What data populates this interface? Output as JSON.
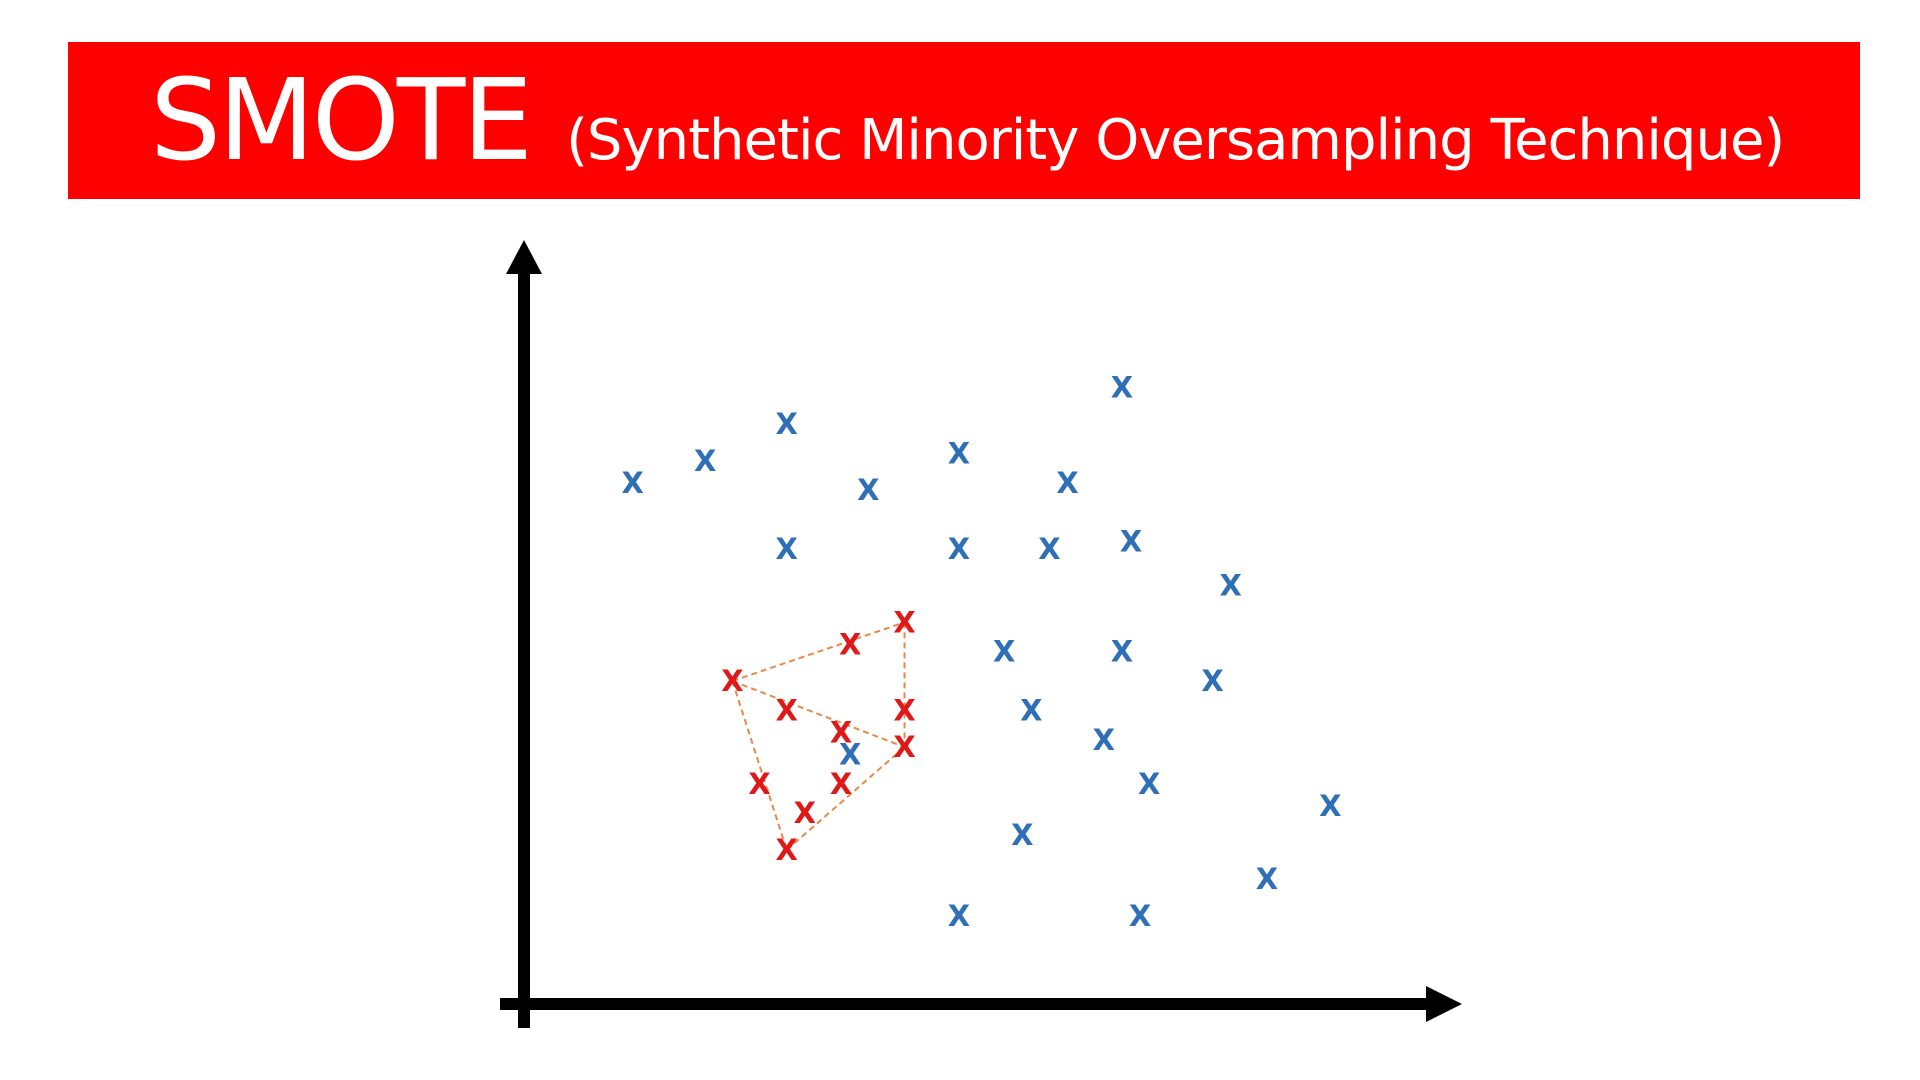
{
  "colors": {
    "banner": "#ff0000",
    "title_text": "#ffffff",
    "majority": "#2f6fb7",
    "minority": "#e01818",
    "synthetic_link": "#e8894a",
    "axis": "#000000"
  },
  "title": {
    "main": "SMOTE",
    "subtitle": "(Synthetic Minority Oversampling Technique)"
  },
  "chart_data": {
    "type": "scatter",
    "marker_text": "X",
    "xlim": [
      0,
      100
    ],
    "ylim": [
      0,
      100
    ],
    "series": [
      {
        "class": "majority",
        "points": [
          [
            12,
            71
          ],
          [
            20,
            74
          ],
          [
            29,
            79
          ],
          [
            29,
            62
          ],
          [
            38,
            70
          ],
          [
            48,
            75
          ],
          [
            48,
            62
          ],
          [
            58,
            62
          ],
          [
            60,
            71
          ],
          [
            66,
            84
          ],
          [
            67,
            63
          ],
          [
            78,
            57
          ],
          [
            53,
            48
          ],
          [
            66,
            48
          ],
          [
            76,
            44
          ],
          [
            56,
            40
          ],
          [
            64,
            36
          ],
          [
            36,
            34
          ],
          [
            69,
            30
          ],
          [
            55,
            23
          ],
          [
            89,
            27
          ],
          [
            82,
            17
          ],
          [
            48,
            12
          ],
          [
            68,
            12
          ]
        ]
      },
      {
        "class": "minority",
        "points": [
          [
            23,
            44
          ],
          [
            36,
            49
          ],
          [
            42,
            52
          ],
          [
            29,
            40
          ],
          [
            35,
            37
          ],
          [
            42,
            40
          ],
          [
            42,
            35
          ],
          [
            26,
            30
          ],
          [
            35,
            30
          ],
          [
            31,
            26
          ],
          [
            29,
            21
          ]
        ]
      }
    ],
    "links": [
      [
        [
          23,
          44
        ],
        [
          42,
          52
        ]
      ],
      [
        [
          42,
          52
        ],
        [
          42,
          35
        ]
      ],
      [
        [
          23,
          44
        ],
        [
          42,
          35
        ]
      ],
      [
        [
          23,
          44
        ],
        [
          29,
          21
        ]
      ],
      [
        [
          29,
          21
        ],
        [
          42,
          35
        ]
      ]
    ]
  }
}
